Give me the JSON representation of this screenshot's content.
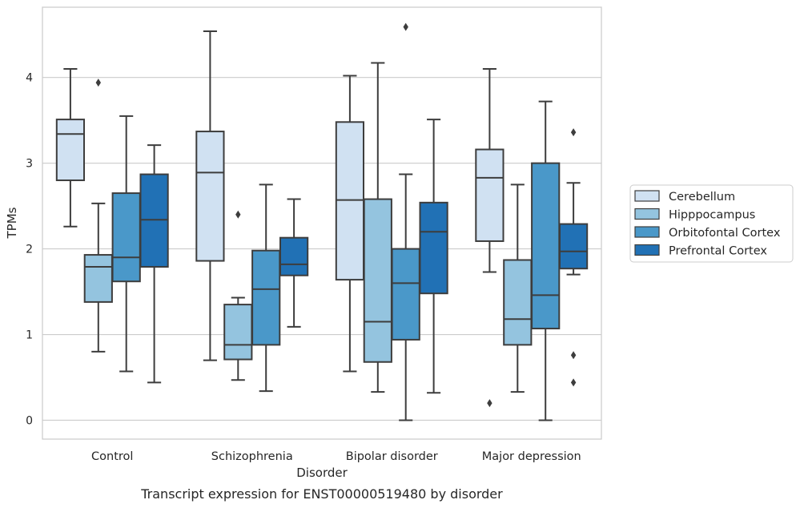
{
  "chart_data": {
    "type": "box",
    "title": "Transcript expression for ENST00000519480 by disorder",
    "xlabel": "Disorder",
    "ylabel": "TPMs",
    "categories": [
      "Control",
      "Schizophrenia",
      "Bipolar disorder",
      "Major depression"
    ],
    "ylim": [
      -0.22,
      4.82
    ],
    "yticks": [
      0,
      1,
      2,
      3,
      4
    ],
    "grid": "horizontal",
    "legend_position": "right",
    "series": [
      {
        "name": "Cerebellum",
        "color": "#d0e1f2",
        "boxes": [
          {
            "whislo": 2.26,
            "q1": 2.8,
            "med": 3.34,
            "q3": 3.51,
            "whishi": 4.1,
            "fliers": []
          },
          {
            "whislo": 0.7,
            "q1": 1.86,
            "med": 2.89,
            "q3": 3.37,
            "whishi": 4.54,
            "fliers": []
          },
          {
            "whislo": 0.57,
            "q1": 1.64,
            "med": 2.57,
            "q3": 3.48,
            "whishi": 4.02,
            "fliers": []
          },
          {
            "whislo": 1.73,
            "q1": 2.09,
            "med": 2.83,
            "q3": 3.16,
            "whishi": 4.1,
            "fliers": [
              0.2
            ]
          }
        ]
      },
      {
        "name": "Hipppocampus",
        "color": "#94c4df",
        "boxes": [
          {
            "whislo": 0.8,
            "q1": 1.38,
            "med": 1.79,
            "q3": 1.93,
            "whishi": 2.53,
            "fliers": [
              3.94
            ]
          },
          {
            "whislo": 0.47,
            "q1": 0.71,
            "med": 0.88,
            "q3": 1.35,
            "whishi": 1.43,
            "fliers": [
              2.4
            ]
          },
          {
            "whislo": 0.33,
            "q1": 0.68,
            "med": 1.15,
            "q3": 2.58,
            "whishi": 4.17,
            "fliers": []
          },
          {
            "whislo": 0.33,
            "q1": 0.88,
            "med": 1.18,
            "q3": 1.87,
            "whishi": 2.75,
            "fliers": []
          }
        ]
      },
      {
        "name": "Orbitofontal Cortex",
        "color": "#4a98c9",
        "boxes": [
          {
            "whislo": 0.57,
            "q1": 1.62,
            "med": 1.9,
            "q3": 2.65,
            "whishi": 3.55,
            "fliers": []
          },
          {
            "whislo": 0.34,
            "q1": 0.88,
            "med": 1.53,
            "q3": 1.98,
            "whishi": 2.75,
            "fliers": []
          },
          {
            "whislo": 0.0,
            "q1": 0.94,
            "med": 1.6,
            "q3": 2.0,
            "whishi": 2.87,
            "fliers": [
              4.59
            ]
          },
          {
            "whislo": 0.0,
            "q1": 1.07,
            "med": 1.46,
            "q3": 3.0,
            "whishi": 3.72,
            "fliers": []
          }
        ]
      },
      {
        "name": "Prefrontal Cortex",
        "color": "#2171b5",
        "boxes": [
          {
            "whislo": 0.44,
            "q1": 1.79,
            "med": 2.34,
            "q3": 2.87,
            "whishi": 3.21,
            "fliers": []
          },
          {
            "whislo": 1.09,
            "q1": 1.69,
            "med": 1.82,
            "q3": 2.13,
            "whishi": 2.58,
            "fliers": []
          },
          {
            "whislo": 0.32,
            "q1": 1.48,
            "med": 2.2,
            "q3": 2.54,
            "whishi": 3.51,
            "fliers": []
          },
          {
            "whislo": 1.7,
            "q1": 1.77,
            "med": 1.97,
            "q3": 2.29,
            "whishi": 2.77,
            "fliers": [
              3.36,
              0.76,
              0.44
            ]
          }
        ]
      }
    ]
  }
}
